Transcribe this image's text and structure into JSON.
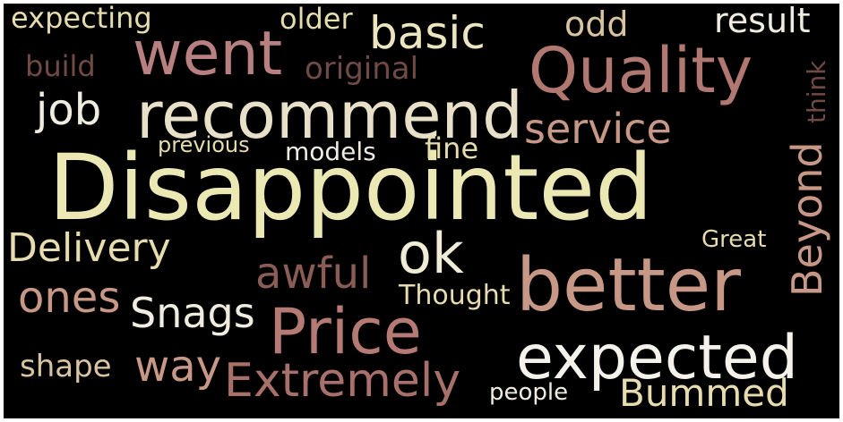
{
  "word_cloud": {
    "words": [
      {
        "text": "Disappointed",
        "color": "#ece8b4"
      },
      {
        "text": "better",
        "color": "#c89886"
      },
      {
        "text": "recommend",
        "color": "#e8e0c8"
      },
      {
        "text": "Quality",
        "color": "#b07870"
      },
      {
        "text": "went",
        "color": "#b88080"
      },
      {
        "text": "Price",
        "color": "#b57a74"
      },
      {
        "text": "expected",
        "color": "#f4f2ea"
      },
      {
        "text": "ok",
        "color": "#f0ecd8"
      },
      {
        "text": "basic",
        "color": "#ece6c0"
      },
      {
        "text": "Delivery",
        "color": "#e6dcae"
      },
      {
        "text": "Extremely",
        "color": "#a8706a"
      },
      {
        "text": "awful",
        "color": "#8a5c56"
      },
      {
        "text": "ones",
        "color": "#c89886"
      },
      {
        "text": "Snags",
        "color": "#f0ece0"
      },
      {
        "text": "way",
        "color": "#c89886"
      },
      {
        "text": "service",
        "color": "#c89886"
      },
      {
        "text": "Bummed",
        "color": "#e6dcae"
      },
      {
        "text": "job",
        "color": "#f0ece0"
      },
      {
        "text": "original",
        "color": "#704a44"
      },
      {
        "text": "Beyond",
        "color": "#c89886"
      },
      {
        "text": "result",
        "color": "#f0ece0"
      },
      {
        "text": "odd",
        "color": "#d8c4a0"
      },
      {
        "text": "older",
        "color": "#e6dcae"
      },
      {
        "text": "expecting",
        "color": "#e6dcae"
      },
      {
        "text": "shape",
        "color": "#d8c4a0"
      },
      {
        "text": "Thought",
        "color": "#e6dcae"
      },
      {
        "text": "people",
        "color": "#f0ece0"
      },
      {
        "text": "models",
        "color": "#f0ece0"
      },
      {
        "text": "fine",
        "color": "#e6dcae"
      },
      {
        "text": "previous",
        "color": "#e6dcae"
      },
      {
        "text": "Great",
        "color": "#e6dcae"
      },
      {
        "text": "think",
        "color": "#704a44"
      },
      {
        "text": "build",
        "color": "#704a44"
      }
    ]
  }
}
